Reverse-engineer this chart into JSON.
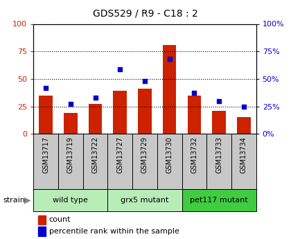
{
  "title": "GDS529 / R9 - C18 : 2",
  "samples": [
    "GSM13717",
    "GSM13719",
    "GSM13722",
    "GSM13727",
    "GSM13729",
    "GSM13730",
    "GSM13732",
    "GSM13733",
    "GSM13734"
  ],
  "counts": [
    35,
    19,
    27,
    39,
    41,
    81,
    35,
    21,
    15
  ],
  "percentiles": [
    42,
    27,
    33,
    59,
    48,
    68,
    37,
    30,
    25
  ],
  "groups": [
    {
      "label": "wild type",
      "indices": [
        0,
        1,
        2
      ],
      "color": "#b8edb8"
    },
    {
      "label": "grx5 mutant",
      "indices": [
        3,
        4,
        5
      ],
      "color": "#b8edb8"
    },
    {
      "label": "pet117 mutant",
      "indices": [
        6,
        7,
        8
      ],
      "color": "#40cc40"
    }
  ],
  "bar_color": "#cc2200",
  "dot_color": "#0000cc",
  "ylim": [
    0,
    100
  ],
  "yticks": [
    0,
    25,
    50,
    75,
    100
  ],
  "tick_label_color_left": "#cc2200",
  "tick_label_color_right": "#0000cc",
  "label_box_color": "#c8c8c8",
  "legend_count_label": "count",
  "legend_percentile_label": "percentile rank within the sample",
  "strain_label": "strain",
  "figsize": [
    4.2,
    3.45
  ],
  "dpi": 100
}
